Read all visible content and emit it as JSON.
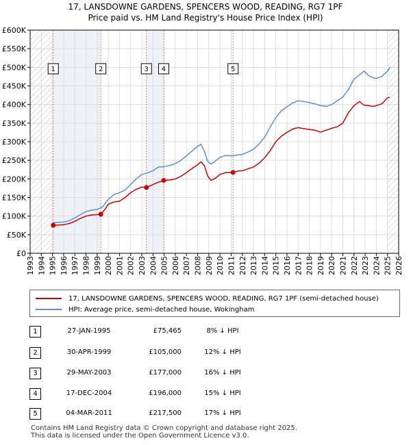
{
  "title_line1": "17, LANSDOWNE GARDENS, SPENCERS WOOD, READING, RG7 1PF",
  "title_line2": "Price paid vs. HM Land Registry's House Price Index (HPI)",
  "colors": {
    "property_line": "#cc0000",
    "hpi_line": "#5b8fd0",
    "hatch": "#bbbbbb",
    "marker_line": "#e08080",
    "grid": "#dddddd",
    "shade": "#eef2f8"
  },
  "legend": {
    "property_label": "17, LANSDOWNE GARDENS, SPENCERS WOOD, READING, RG7 1PF (semi-detached house)",
    "hpi_label": "HPI: Average price, semi-detached house, Wokingham"
  },
  "sales": [
    {
      "num": "1",
      "date": "27-JAN-1995",
      "price": "£75,465",
      "hpi_diff": "8% ↓ HPI"
    },
    {
      "num": "2",
      "date": "30-APR-1999",
      "price": "£105,000",
      "hpi_diff": "12% ↓ HPI"
    },
    {
      "num": "3",
      "date": "29-MAY-2003",
      "price": "£177,000",
      "hpi_diff": "16% ↓ HPI"
    },
    {
      "num": "4",
      "date": "17-DEC-2004",
      "price": "£196,000",
      "hpi_diff": "15% ↓ HPI"
    },
    {
      "num": "5",
      "date": "04-MAR-2011",
      "price": "£217,500",
      "hpi_diff": "17% ↓ HPI"
    }
  ],
  "footer_line1": "Contains HM Land Registry data © Crown copyright and database right 2025.",
  "footer_line2": "This data is licensed under the Open Government Licence v3.0.",
  "chart_data": {
    "type": "line",
    "title": "17, LANSDOWNE GARDENS, SPENCERS WOOD, READING, RG7 1PF",
    "subtitle": "Price paid vs. HM Land Registry's House Price Index (HPI)",
    "xlabel": "",
    "ylabel": "",
    "xlim": [
      1993,
      2026
    ],
    "ylim": [
      0,
      600000
    ],
    "x_ticks": [
      1993,
      1994,
      1995,
      1996,
      1997,
      1998,
      1999,
      2000,
      2001,
      2002,
      2003,
      2004,
      2005,
      2006,
      2007,
      2008,
      2009,
      2010,
      2011,
      2012,
      2013,
      2014,
      2015,
      2016,
      2017,
      2018,
      2019,
      2020,
      2021,
      2022,
      2023,
      2024,
      2025,
      2026
    ],
    "y_ticks": [
      0,
      50000,
      100000,
      150000,
      200000,
      250000,
      300000,
      350000,
      400000,
      450000,
      500000,
      550000,
      600000
    ],
    "y_tick_labels": [
      "£0",
      "£50K",
      "£100K",
      "£150K",
      "£200K",
      "£250K",
      "£300K",
      "£350K",
      "£400K",
      "£450K",
      "£500K",
      "£550K",
      "£600K"
    ],
    "hatched_before": 1995.07,
    "hatched_after": 2025.0,
    "series": [
      {
        "name": "17, LANSDOWNE GARDENS, SPENCERS WOOD, READING, RG7 1PF (semi-detached house)",
        "x": [
          1995.07,
          1995.5,
          1996,
          1996.5,
          1997,
          1997.5,
          1998,
          1998.5,
          1999.0,
          1999.33,
          1999.7,
          2000,
          2000.5,
          2001,
          2001.5,
          2002,
          2002.5,
          2003,
          2003.41,
          2003.8,
          2004.3,
          2004.96,
          2005.5,
          2006,
          2006.5,
          2007,
          2007.5,
          2008,
          2008.3,
          2008.6,
          2008.9,
          2009.2,
          2009.6,
          2010,
          2010.5,
          2011.17,
          2011.6,
          2012,
          2012.5,
          2013,
          2013.5,
          2014,
          2014.5,
          2015,
          2015.5,
          2016,
          2016.5,
          2017,
          2017.5,
          2018,
          2018.5,
          2019,
          2019.5,
          2020,
          2020.5,
          2021,
          2021.5,
          2022,
          2022.5,
          2022.9,
          2023.3,
          2023.7,
          2024,
          2024.5,
          2025,
          2025.2
        ],
        "values": [
          75465,
          76000,
          77000,
          80000,
          86000,
          94000,
          100000,
          103000,
          104000,
          105000,
          118000,
          132000,
          138000,
          140000,
          150000,
          163000,
          172000,
          178000,
          177000,
          182000,
          189000,
          196000,
          197000,
          200000,
          207000,
          217000,
          228000,
          238000,
          246000,
          236000,
          208000,
          196000,
          202000,
          212000,
          217000,
          217500,
          221000,
          222000,
          227000,
          232000,
          242000,
          257000,
          276000,
          300000,
          315000,
          325000,
          334000,
          338000,
          335000,
          333000,
          331000,
          326000,
          331000,
          336000,
          340000,
          350000,
          378000,
          397000,
          408000,
          398000,
          397000,
          395000,
          397000,
          402000,
          418000,
          420000
        ]
      },
      {
        "name": "HPI: Average price, semi-detached house, Wokingham",
        "x": [
          1995.0,
          1995.5,
          1996,
          1996.5,
          1997,
          1997.5,
          1998,
          1998.5,
          1999,
          1999.5,
          2000,
          2000.5,
          2001,
          2001.5,
          2002,
          2002.5,
          2003,
          2003.5,
          2004,
          2004.5,
          2005,
          2005.5,
          2006,
          2006.5,
          2007,
          2007.5,
          2008,
          2008.3,
          2008.6,
          2008.9,
          2009.2,
          2009.6,
          2010,
          2010.5,
          2011,
          2011.5,
          2012,
          2012.5,
          2013,
          2013.5,
          2014,
          2014.5,
          2015,
          2015.5,
          2016,
          2016.5,
          2017,
          2017.5,
          2018,
          2018.5,
          2019,
          2019.5,
          2020,
          2020.5,
          2021,
          2021.5,
          2022,
          2022.5,
          2022.9,
          2023.3,
          2023.7,
          2024,
          2024.5,
          2025,
          2025.2
        ],
        "values": [
          82000,
          83000,
          84000,
          88000,
          95000,
          104000,
          112000,
          116000,
          118000,
          125000,
          145000,
          158000,
          163000,
          170000,
          185000,
          200000,
          212000,
          216000,
          222000,
          232000,
          233000,
          236000,
          241000,
          250000,
          262000,
          275000,
          288000,
          293000,
          275000,
          247000,
          240000,
          248000,
          258000,
          263000,
          262000,
          264000,
          266000,
          272000,
          280000,
          294000,
          312000,
          340000,
          365000,
          383000,
          394000,
          404000,
          410000,
          408000,
          405000,
          402000,
          397000,
          395000,
          400000,
          410000,
          420000,
          440000,
          468000,
          480000,
          490000,
          478000,
          472000,
          470000,
          476000,
          490000,
          500000
        ]
      }
    ],
    "sale_points": [
      {
        "label": "1",
        "x": 1995.07,
        "y": 75465
      },
      {
        "label": "2",
        "x": 1999.33,
        "y": 105000
      },
      {
        "label": "3",
        "x": 2003.41,
        "y": 177000
      },
      {
        "label": "4",
        "x": 2004.96,
        "y": 196000
      },
      {
        "label": "5",
        "x": 2011.17,
        "y": 217500
      }
    ]
  }
}
